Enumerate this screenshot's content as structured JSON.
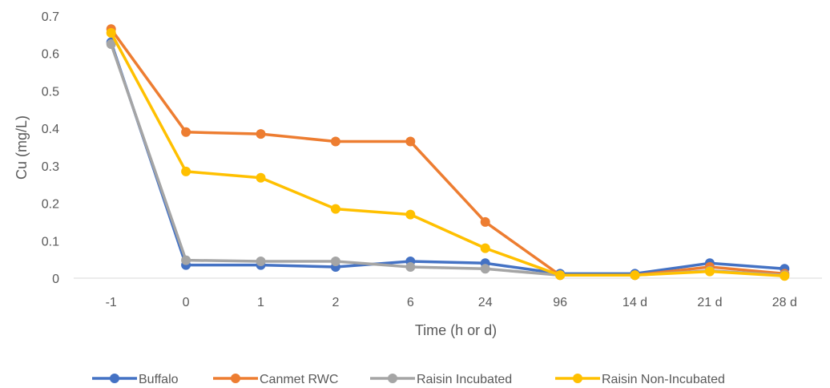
{
  "chart_data": {
    "type": "line",
    "title": "",
    "xlabel": "Time (h or d)",
    "ylabel": "Cu (mg/L)",
    "categories": [
      "-1",
      "0",
      "1",
      "2",
      "6",
      "24",
      "96",
      "14 d",
      "21 d",
      "28 d"
    ],
    "ylim": [
      0,
      0.7
    ],
    "yticks": [
      "0",
      "0.1",
      "0.2",
      "0.3",
      "0.4",
      "0.5",
      "0.6",
      "0.7"
    ],
    "grid": false,
    "legend_position": "bottom",
    "series": [
      {
        "name": "Buffalo",
        "color": "#4472C4",
        "values": [
          0.63,
          0.035,
          0.035,
          0.03,
          0.045,
          0.04,
          0.012,
          0.012,
          0.04,
          0.025
        ]
      },
      {
        "name": "Canmet RWC",
        "color": "#ED7D31",
        "values": [
          0.665,
          0.39,
          0.385,
          0.365,
          0.365,
          0.15,
          0.008,
          0.008,
          0.03,
          0.012
        ]
      },
      {
        "name": "Raisin Incubated",
        "color": "#A5A5A5",
        "values": [
          0.625,
          0.048,
          0.045,
          0.045,
          0.03,
          0.025,
          0.008,
          0.008,
          0.02,
          0.008
        ]
      },
      {
        "name": "Raisin Non-Incubated",
        "color": "#FFC000",
        "values": [
          0.655,
          0.285,
          0.268,
          0.185,
          0.17,
          0.08,
          0.008,
          0.008,
          0.018,
          0.006
        ]
      }
    ]
  }
}
